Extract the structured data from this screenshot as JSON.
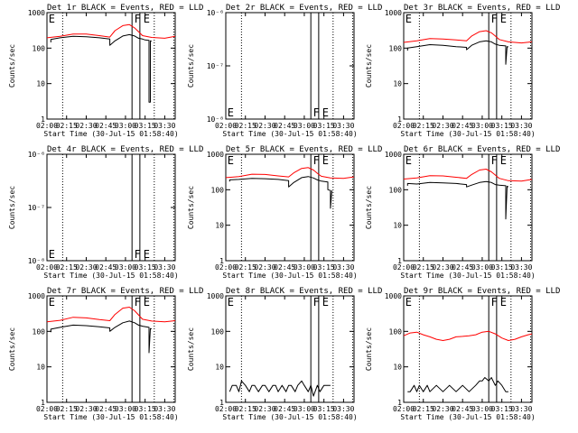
{
  "page": {
    "title": "RHESSI detector count rates, Events vs LLD"
  },
  "colors": {
    "events": "#000000",
    "lld": "#ff0000",
    "axis": "#000000",
    "background": "#ffffff"
  },
  "shared": {
    "xlabel": "Start Time (30-Jul-15 01:58:40)",
    "ylabel": "Counts/sec",
    "x_ticks": [
      "02:00",
      "02:15",
      "02:30",
      "02:45",
      "03:00",
      "03:15",
      "03:30"
    ],
    "x_tick_minutes": [
      0,
      15,
      30,
      45,
      60,
      75,
      90
    ],
    "x_range_minutes": [
      0,
      98
    ],
    "dotted_markers_minutes": [
      12,
      82,
      97
    ],
    "solid_markers_minutes": [
      65,
      71
    ],
    "flag_letters": [
      {
        "text": "E",
        "minute": 0.5
      },
      {
        "text": "F",
        "minute": 66
      },
      {
        "text": "E",
        "minute": 73
      }
    ]
  },
  "chart_data": [
    {
      "type": "line",
      "title": "Det 1r BLACK = Events, RED = LLD",
      "ylim": [
        1,
        1000
      ],
      "ylog": true,
      "yticks": [
        {
          "v": 1000,
          "label": "1000"
        },
        {
          "v": 100,
          "label": "100"
        },
        {
          "v": 10,
          "label": "10"
        },
        {
          "v": 1,
          "label": "1"
        }
      ],
      "series": [
        {
          "name": "LLD",
          "key": "lld",
          "x": [
            0,
            10,
            20,
            30,
            40,
            48,
            52,
            58,
            63,
            67,
            70,
            73,
            80,
            90,
            98
          ],
          "y": [
            195,
            215,
            250,
            250,
            225,
            205,
            310,
            430,
            460,
            370,
            290,
            225,
            200,
            190,
            215
          ]
        },
        {
          "name": "Events",
          "key": "events",
          "x": [
            3,
            3,
            10,
            20,
            30,
            40,
            48,
            48,
            52,
            58,
            63,
            67,
            70,
            73,
            75,
            78,
            78,
            79,
            79,
            80
          ],
          "y": [
            145,
            175,
            195,
            215,
            210,
            195,
            180,
            120,
            160,
            220,
            240,
            220,
            190,
            180,
            170,
            165,
            3,
            3,
            160,
            155
          ]
        }
      ]
    },
    {
      "type": "line",
      "title": "Det 2r BLACK = Events, RED = LLD",
      "ylim": [
        1e-08,
        1e-06
      ],
      "ylog": true,
      "yticks": [
        {
          "v": 1e-06,
          "label": "10⁻⁶"
        },
        {
          "v": 1e-07,
          "label": "10⁻⁷"
        },
        {
          "v": 1e-08,
          "label": "10⁻⁸"
        }
      ],
      "series": []
    },
    {
      "type": "line",
      "title": "Det 3r BLACK = Events, RED = LLD",
      "ylim": [
        1,
        1000
      ],
      "ylog": true,
      "yticks": [
        {
          "v": 1000,
          "label": "1000"
        },
        {
          "v": 100,
          "label": "100"
        },
        {
          "v": 10,
          "label": "10"
        },
        {
          "v": 1,
          "label": "1"
        }
      ],
      "series": [
        {
          "name": "LLD",
          "key": "lld",
          "x": [
            0,
            10,
            20,
            30,
            40,
            48,
            52,
            58,
            63,
            67,
            70,
            73,
            80,
            90,
            98
          ],
          "y": [
            145,
            160,
            185,
            180,
            170,
            160,
            220,
            290,
            310,
            270,
            220,
            175,
            150,
            140,
            150
          ]
        },
        {
          "name": "Events",
          "key": "events",
          "x": [
            3,
            3,
            10,
            20,
            30,
            40,
            48,
            48,
            52,
            58,
            63,
            67,
            70,
            73,
            78,
            78,
            79,
            80
          ],
          "y": [
            85,
            100,
            110,
            125,
            120,
            110,
            105,
            90,
            120,
            150,
            160,
            150,
            130,
            120,
            115,
            35,
            110,
            108
          ]
        }
      ]
    },
    {
      "type": "line",
      "title": "Det 4r BLACK = Events, RED = LLD",
      "ylim": [
        1e-08,
        1e-06
      ],
      "ylog": true,
      "yticks": [
        {
          "v": 1e-06,
          "label": "10⁻⁶"
        },
        {
          "v": 1e-07,
          "label": "10⁻⁷"
        },
        {
          "v": 1e-08,
          "label": "10⁻⁸"
        }
      ],
      "series": []
    },
    {
      "type": "line",
      "title": "Det 5r BLACK = Events, RED = LLD",
      "ylim": [
        1,
        1000
      ],
      "ylog": true,
      "yticks": [
        {
          "v": 1000,
          "label": "1000"
        },
        {
          "v": 100,
          "label": "100"
        },
        {
          "v": 10,
          "label": "10"
        },
        {
          "v": 1,
          "label": "1"
        }
      ],
      "series": [
        {
          "name": "LLD",
          "key": "lld",
          "x": [
            0,
            10,
            20,
            30,
            40,
            48,
            52,
            58,
            63,
            67,
            70,
            73,
            80,
            90,
            98
          ],
          "y": [
            220,
            235,
            275,
            270,
            245,
            230,
            300,
            400,
            420,
            360,
            290,
            240,
            215,
            210,
            230
          ]
        },
        {
          "name": "Events",
          "key": "events",
          "x": [
            3,
            3,
            10,
            20,
            30,
            40,
            48,
            48,
            52,
            58,
            63,
            67,
            70,
            73,
            78,
            78,
            80,
            80,
            81
          ],
          "y": [
            170,
            190,
            195,
            210,
            205,
            195,
            180,
            120,
            160,
            220,
            235,
            215,
            190,
            175,
            165,
            100,
            95,
            30,
            95
          ]
        }
      ]
    },
    {
      "type": "line",
      "title": "Det 6r BLACK = Events, RED = LLD",
      "ylim": [
        1,
        1000
      ],
      "ylog": true,
      "yticks": [
        {
          "v": 1000,
          "label": "1000"
        },
        {
          "v": 100,
          "label": "100"
        },
        {
          "v": 10,
          "label": "10"
        },
        {
          "v": 1,
          "label": "1"
        }
      ],
      "series": [
        {
          "name": "LLD",
          "key": "lld",
          "x": [
            0,
            10,
            20,
            30,
            40,
            48,
            52,
            58,
            63,
            67,
            70,
            73,
            80,
            90,
            98
          ],
          "y": [
            200,
            215,
            250,
            245,
            225,
            210,
            270,
            360,
            380,
            320,
            260,
            210,
            180,
            175,
            195
          ]
        },
        {
          "name": "Events",
          "key": "events",
          "x": [
            3,
            3,
            10,
            20,
            30,
            40,
            48,
            48,
            52,
            58,
            63,
            67,
            70,
            73,
            78,
            78,
            79,
            80
          ],
          "y": [
            130,
            150,
            145,
            160,
            155,
            150,
            140,
            120,
            135,
            160,
            170,
            160,
            140,
            135,
            130,
            15,
            125,
            120
          ]
        }
      ]
    },
    {
      "type": "line",
      "title": "Det 7r BLACK = Events, RED = LLD",
      "ylim": [
        1,
        1000
      ],
      "ylog": true,
      "yticks": [
        {
          "v": 1000,
          "label": "1000"
        },
        {
          "v": 100,
          "label": "100"
        },
        {
          "v": 10,
          "label": "10"
        },
        {
          "v": 1,
          "label": "1"
        }
      ],
      "series": [
        {
          "name": "LLD",
          "key": "lld",
          "x": [
            0,
            10,
            20,
            30,
            40,
            48,
            52,
            58,
            63,
            67,
            70,
            73,
            80,
            90,
            98
          ],
          "y": [
            185,
            205,
            250,
            240,
            215,
            200,
            300,
            450,
            480,
            380,
            290,
            220,
            195,
            185,
            200
          ]
        },
        {
          "name": "Events",
          "key": "events",
          "x": [
            3,
            3,
            10,
            20,
            30,
            40,
            48,
            48,
            52,
            58,
            63,
            67,
            70,
            73,
            78,
            78,
            79,
            80
          ],
          "y": [
            95,
            115,
            130,
            150,
            145,
            135,
            125,
            100,
            130,
            175,
            195,
            175,
            150,
            140,
            130,
            25,
            120,
            118
          ]
        }
      ]
    },
    {
      "type": "line",
      "title": "Det 8r BLACK = Events, RED = LLD",
      "ylim": [
        1,
        1000
      ],
      "ylog": true,
      "yticks": [
        {
          "v": 1000,
          "label": "1000"
        },
        {
          "v": 100,
          "label": "100"
        },
        {
          "v": 10,
          "label": "10"
        },
        {
          "v": 1,
          "label": "1"
        }
      ],
      "series": [
        {
          "name": "Events",
          "key": "events",
          "x": [
            3,
            5,
            8,
            10,
            12,
            15,
            18,
            20,
            22,
            25,
            28,
            30,
            33,
            36,
            38,
            40,
            43,
            46,
            48,
            50,
            53,
            55,
            58,
            60,
            63,
            65,
            67,
            70,
            72,
            75,
            78,
            80
          ],
          "y": [
            2,
            3,
            3,
            2,
            4,
            3,
            2,
            3,
            3,
            2,
            3,
            3,
            2,
            3,
            3,
            2,
            3,
            2,
            3,
            3,
            2,
            3,
            4,
            3,
            2,
            3,
            1.5,
            3,
            2,
            3,
            3,
            3
          ]
        }
      ]
    },
    {
      "type": "line",
      "title": "Det 9r BLACK = Events, RED = LLD",
      "ylim": [
        1,
        1000
      ],
      "ylog": true,
      "yticks": [
        {
          "v": 1000,
          "label": "1000"
        },
        {
          "v": 100,
          "label": "100"
        },
        {
          "v": 10,
          "label": "10"
        },
        {
          "v": 1,
          "label": "1"
        }
      ],
      "series": [
        {
          "name": "LLD",
          "key": "lld",
          "x": [
            0,
            5,
            10,
            15,
            20,
            25,
            30,
            35,
            40,
            45,
            50,
            55,
            60,
            65,
            70,
            75,
            80,
            85,
            90,
            95,
            98
          ],
          "y": [
            75,
            90,
            95,
            80,
            70,
            60,
            55,
            60,
            70,
            72,
            75,
            80,
            95,
            100,
            85,
            65,
            55,
            60,
            70,
            80,
            85
          ]
        },
        {
          "name": "Events",
          "key": "events",
          "x": [
            3,
            5,
            8,
            10,
            12,
            15,
            18,
            20,
            25,
            30,
            35,
            40,
            45,
            50,
            55,
            58,
            60,
            62,
            65,
            67,
            70,
            72,
            75,
            78,
            80
          ],
          "y": [
            2,
            2,
            3,
            2,
            3,
            2,
            3,
            2,
            3,
            2,
            3,
            2,
            3,
            2,
            3,
            4,
            4,
            5,
            4,
            5,
            3,
            4,
            3,
            2,
            2
          ]
        }
      ]
    }
  ]
}
